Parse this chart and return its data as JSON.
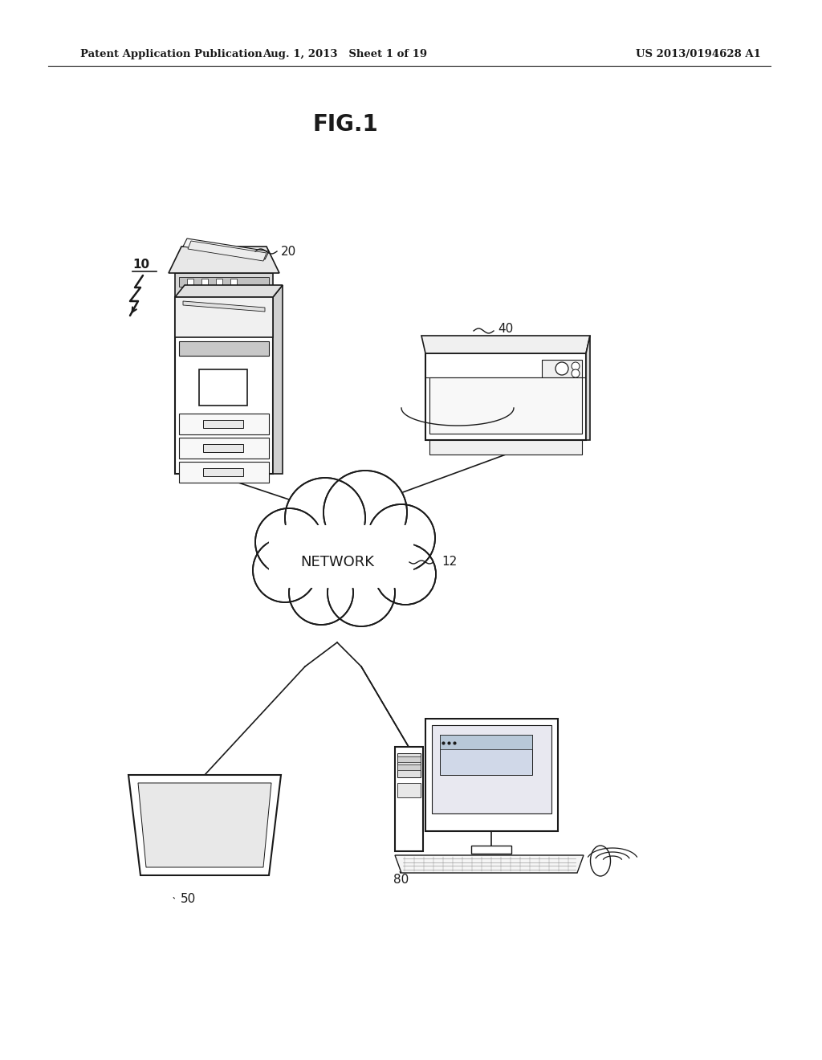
{
  "bg_color": "#ffffff",
  "line_color": "#1a1a1a",
  "header_left": "Patent Application Publication",
  "header_middle": "Aug. 1, 2013   Sheet 1 of 19",
  "header_right": "US 2013/0194628 A1",
  "fig_label": "FIG.1",
  "label_10": "10",
  "label_20": "20",
  "label_40": "40",
  "label_12": "12",
  "label_50": "50",
  "label_80": "80",
  "network_text": "NETWORK"
}
